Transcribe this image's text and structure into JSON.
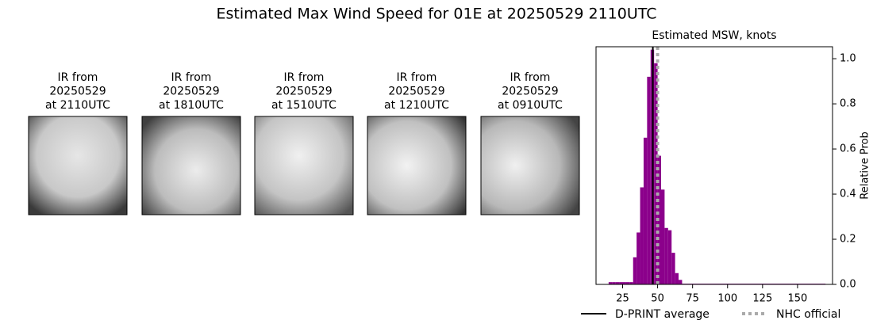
{
  "title": "Estimated Max Wind Speed for 01E at 20250529 2110UTC",
  "panels": [
    {
      "lines": [
        "IR from",
        "20250529",
        "at 2110UTC"
      ]
    },
    {
      "lines": [
        "IR from",
        "20250529",
        "at 1810UTC"
      ]
    },
    {
      "lines": [
        "IR from",
        "20250529",
        "at 1510UTC"
      ]
    },
    {
      "lines": [
        "IR from",
        "20250529",
        "at 1210UTC"
      ]
    },
    {
      "lines": [
        "IR from",
        "20250529",
        "at 0910UTC"
      ]
    }
  ],
  "chart_data": {
    "type": "histogram",
    "title": "Estimated MSW, knots",
    "y_label": "Relative Prob",
    "bins": [
      15,
      17.5,
      20,
      22.5,
      25,
      27.5,
      30,
      32.5,
      35,
      37.5,
      40,
      42.5,
      45,
      47.5,
      50,
      52.5,
      55,
      57.5,
      60,
      62.5,
      65,
      67.5,
      170
    ],
    "values": [
      0.01,
      0.01,
      0.01,
      0.01,
      0.01,
      0.01,
      0.01,
      0.12,
      0.23,
      0.43,
      0.65,
      0.92,
      1.04,
      0.98,
      0.57,
      0.42,
      0.25,
      0.24,
      0.14,
      0.05,
      0.02,
      0.003
    ],
    "color": "#8b008b",
    "xlim": [
      6,
      175
    ],
    "ylim": [
      0,
      1.053
    ],
    "xticks": [
      25,
      50,
      75,
      100,
      125,
      150
    ],
    "yticks": [
      {
        "value": 0,
        "label": "0.0"
      },
      0.2,
      0.4,
      0.6,
      0.8,
      {
        "value": 1,
        "label": "1.0"
      }
    ],
    "y_axis_side": "right",
    "reference_lines": [
      {
        "name": "D-PRINT average",
        "value": 46.6,
        "color": "#000000",
        "style": "solid"
      },
      {
        "name": "NHC official",
        "value": 50,
        "color": "#aaaaaa",
        "style": "dotted"
      }
    ]
  }
}
